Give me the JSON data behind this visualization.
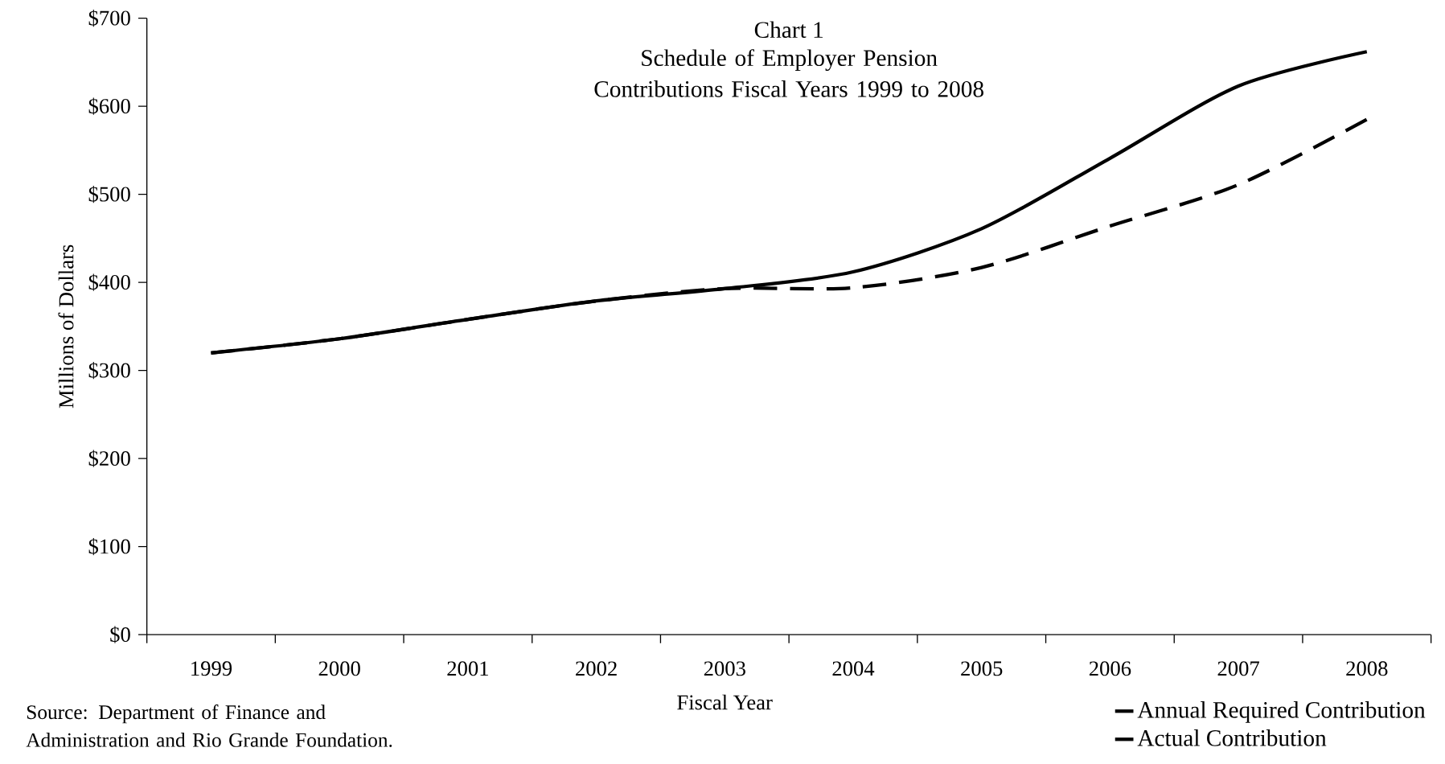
{
  "chart_data": {
    "type": "line",
    "title": "Chart 1",
    "subtitle": "Schedule of Employer Pension Contributions Fiscal Years 1999 to 2008",
    "xlabel": "Fiscal Year",
    "ylabel": "Millions of Dollars",
    "categories": [
      "1999",
      "2000",
      "2001",
      "2002",
      "2003",
      "2004",
      "2005",
      "2006",
      "2007",
      "2008"
    ],
    "series": [
      {
        "name": "Annual Required Contribution",
        "color": "#000000",
        "line_style": "solid",
        "values": [
          320,
          336,
          358,
          379,
          393,
          412,
          461,
          541,
          623,
          662
        ]
      },
      {
        "name": "Actual Contribution",
        "color": "#000000",
        "line_style": "dashed",
        "values": [
          320,
          336,
          358,
          379,
          393,
          394,
          417,
          464,
          511,
          585
        ]
      }
    ],
    "ylim": [
      0,
      700
    ],
    "yticks": [
      {
        "value": 0,
        "label": "$0"
      },
      {
        "value": 100,
        "label": "$100"
      },
      {
        "value": 200,
        "label": "$200"
      },
      {
        "value": 300,
        "label": "$300"
      },
      {
        "value": 400,
        "label": "$400"
      },
      {
        "value": 500,
        "label": "$500"
      },
      {
        "value": 600,
        "label": "$600"
      },
      {
        "value": 700,
        "label": "$700"
      }
    ],
    "grid": false,
    "legend": "bottom right",
    "marker": "none",
    "annotations": [
      "Source: Department of Finance and Administration and Rio Grande Foundation."
    ]
  }
}
